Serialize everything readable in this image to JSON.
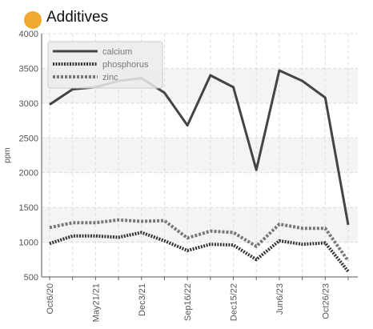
{
  "header": {
    "title": "Additives",
    "dot_color": "#f0a830"
  },
  "chart_data": {
    "type": "line",
    "title": "Additives",
    "ylabel": "ppm",
    "xlabel": "",
    "ylim": [
      500,
      4000
    ],
    "yticks": [
      500,
      1000,
      1500,
      2000,
      2500,
      3000,
      3500,
      4000
    ],
    "x": [
      "Oct6/20",
      "",
      "May21/21",
      "",
      "Dec3/21",
      "",
      "Sep16/22",
      "",
      "Dec15/22",
      "",
      "Jun6/23",
      "",
      "Oct26/23",
      ""
    ],
    "series": [
      {
        "name": "calcium",
        "color": "#444444",
        "style": "solid",
        "values": [
          2980,
          3200,
          3230,
          3320,
          3360,
          3150,
          2680,
          3400,
          3230,
          2040,
          3470,
          3320,
          3080,
          1250
        ]
      },
      {
        "name": "phosphorus",
        "color": "#333333",
        "style": "dotted",
        "values": [
          980,
          1090,
          1090,
          1070,
          1140,
          1020,
          880,
          970,
          960,
          750,
          1020,
          970,
          990,
          580
        ]
      },
      {
        "name": "zinc",
        "color": "#777777",
        "style": "dashed",
        "values": [
          1210,
          1280,
          1280,
          1320,
          1300,
          1310,
          1060,
          1160,
          1140,
          940,
          1260,
          1200,
          1200,
          730
        ]
      }
    ],
    "legend_position": "top-left",
    "grid": true
  }
}
